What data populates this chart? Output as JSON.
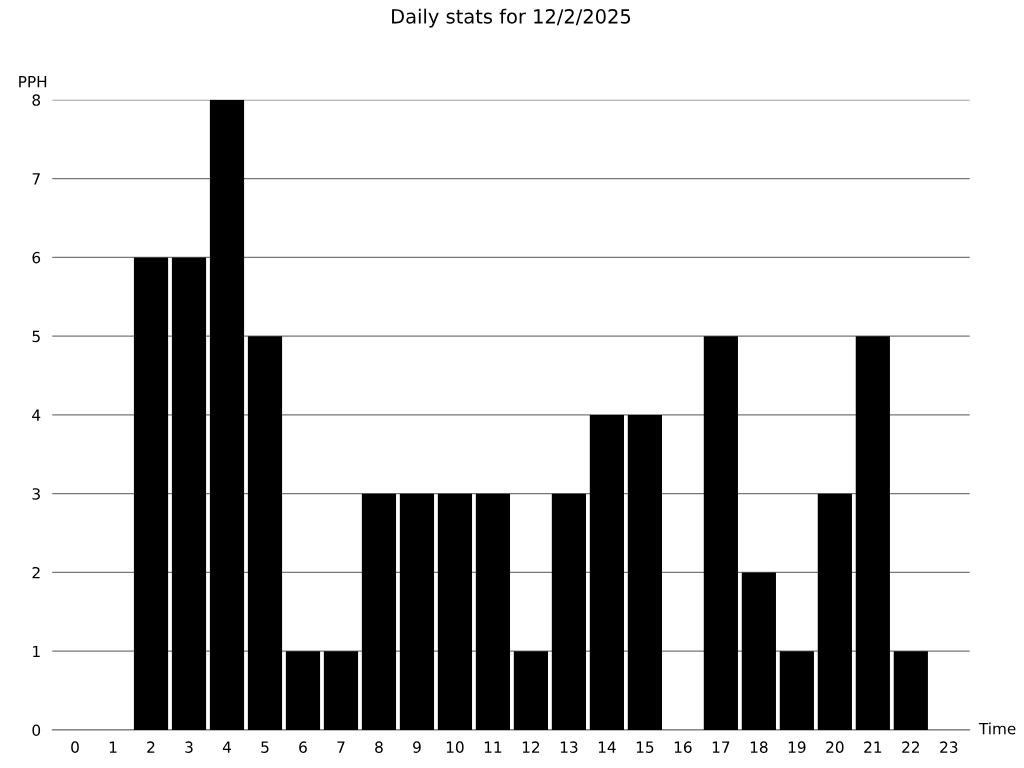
{
  "chart_data": {
    "type": "bar",
    "title": "Daily stats for 12/2/2025",
    "xlabel": "Time",
    "ylabel": "PPH",
    "categories": [
      "0",
      "1",
      "2",
      "3",
      "4",
      "5",
      "6",
      "7",
      "8",
      "9",
      "10",
      "11",
      "12",
      "13",
      "14",
      "15",
      "16",
      "17",
      "18",
      "19",
      "20",
      "21",
      "22",
      "23"
    ],
    "values": [
      0,
      0,
      6,
      6,
      8,
      5,
      1,
      1,
      3,
      3,
      3,
      3,
      1,
      3,
      4,
      4,
      0,
      5,
      2,
      1,
      3,
      5,
      1,
      0
    ],
    "color": "#000000",
    "ylim": [
      0,
      8
    ],
    "yticks": [
      0,
      1,
      2,
      3,
      4,
      5,
      6,
      7,
      8
    ],
    "grid": "y",
    "legend": false
  }
}
